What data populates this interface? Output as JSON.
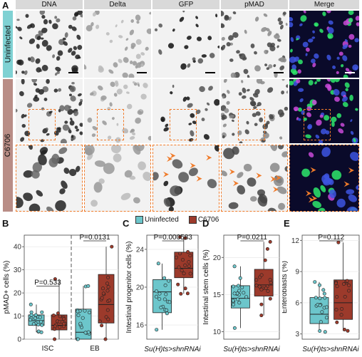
{
  "panel_letters": [
    "A",
    "B",
    "C",
    "D",
    "E"
  ],
  "panel_a": {
    "columns": [
      "DNA",
      "Delta",
      "GFP",
      "pMAD",
      "Merge"
    ],
    "rows": [
      "Uninfected",
      "C6706"
    ],
    "row_colors": {
      "Uninfected": "#7fd1d3",
      "C6706": "#b98d86"
    },
    "accent": "#f07b2a"
  },
  "legend": {
    "items": [
      {
        "label": "Uninfected",
        "color": "#6cc6cb"
      },
      {
        "label": "C6706",
        "color": "#9c3a2b"
      }
    ]
  },
  "chart_data": [
    {
      "type": "box",
      "panel": "B",
      "ylabel": "pMAD+ cells (%)",
      "ylim": [
        0,
        45
      ],
      "yticks": [
        "0",
        "10",
        "20",
        "30",
        "40"
      ],
      "categories": [
        "ISC",
        "EB"
      ],
      "annotations": [
        "P=0.533",
        "P=0.0131"
      ],
      "series": [
        {
          "name": "Uninfected",
          "boxes": [
            {
              "min": 3,
              "q1": 6,
              "median": 8,
              "q3": 10.5,
              "max": 15
            },
            {
              "min": 0,
              "q1": 0,
              "median": 3,
              "q3": 13,
              "max": 23
            }
          ]
        },
        {
          "name": "C6706",
          "boxes": [
            {
              "min": 0,
              "q1": 4,
              "median": 6,
              "q3": 10.5,
              "max": 26
            },
            {
              "min": 0,
              "q1": 7,
              "median": 15,
              "q3": 28,
              "max": 40
            }
          ]
        }
      ]
    },
    {
      "type": "box",
      "panel": "C",
      "ylabel": "Intestinal progenitor cells (%)",
      "xlabel": "Su(H)ts>shnRNAi",
      "ylim": [
        14.5,
        25.5
      ],
      "yticks": [
        "16",
        "20",
        "24"
      ],
      "annotations": [
        "P=0.000583"
      ],
      "series": [
        {
          "name": "Uninfected",
          "box": {
            "min": 15.5,
            "q1": 17.3,
            "median": 19.5,
            "q3": 20.8,
            "max": 22.5
          }
        },
        {
          "name": "C6706",
          "box": {
            "min": 19.3,
            "q1": 21.0,
            "median": 22.0,
            "q3": 23.7,
            "max": 25.3
          }
        }
      ]
    },
    {
      "type": "box",
      "panel": "D",
      "ylabel": "Intestinal stem cells (%)",
      "xlabel": "Su(H)ts>shnRNAi",
      "ylim": [
        9,
        23
      ],
      "yticks": [
        "10",
        "15",
        "20"
      ],
      "annotations": [
        "P=0.0211"
      ],
      "series": [
        {
          "name": "Uninfected",
          "box": {
            "min": 10.5,
            "q1": 13.2,
            "median": 14.5,
            "q3": 16.2,
            "max": 18.8
          }
        },
        {
          "name": "C6706",
          "box": {
            "min": 12.2,
            "q1": 14.8,
            "median": 16.3,
            "q3": 18.4,
            "max": 22.1
          }
        }
      ]
    },
    {
      "type": "box",
      "panel": "E",
      "ylabel": "Enteroblasts (%)",
      "xlabel": "Su(H)ts>shnRNAi",
      "ylim": [
        2.5,
        12.5
      ],
      "yticks": [
        "3",
        "6",
        "9",
        "12"
      ],
      "annotations": [
        "P=0.112"
      ],
      "series": [
        {
          "name": "Uninfected",
          "box": {
            "min": 3.2,
            "q1": 4.0,
            "median": 4.9,
            "q3": 6.5,
            "max": 8.0
          }
        },
        {
          "name": "C6706",
          "box": {
            "min": 3.3,
            "q1": 4.4,
            "median": 6.0,
            "q3": 8.2,
            "max": 11.8
          }
        }
      ]
    }
  ]
}
